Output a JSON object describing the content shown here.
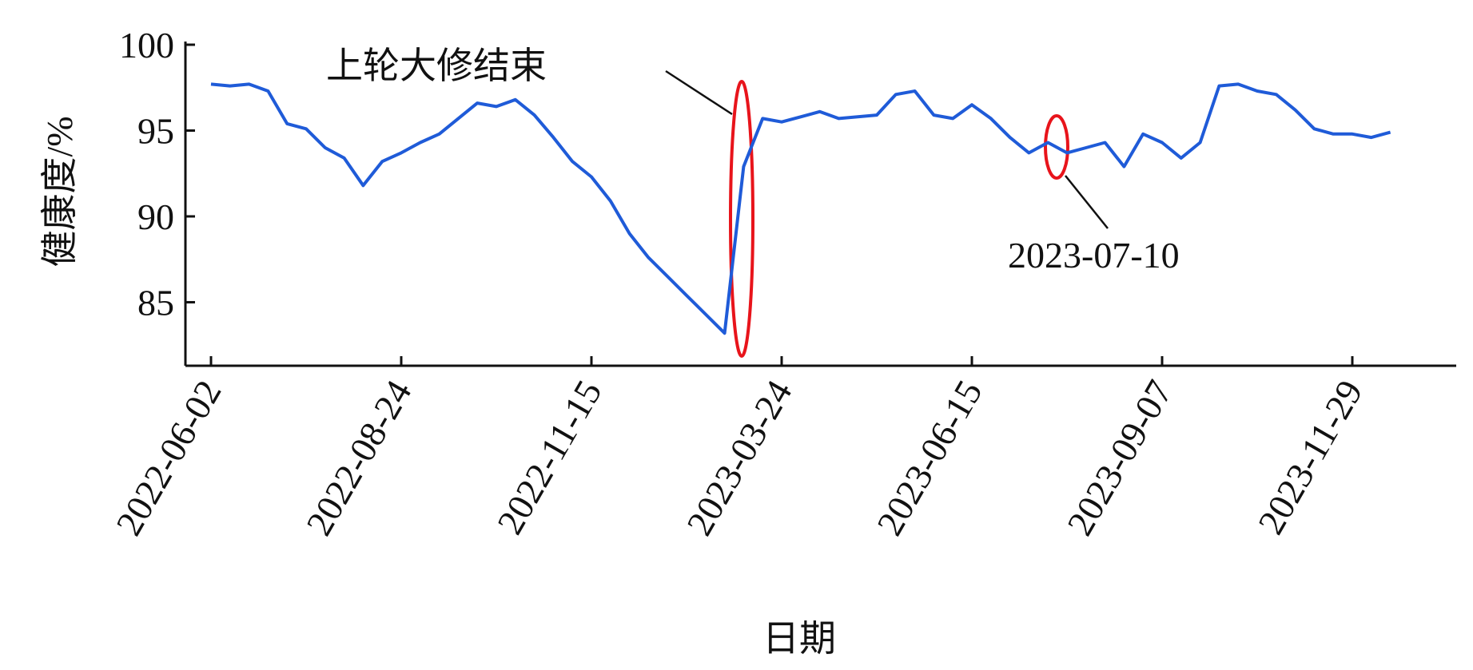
{
  "chart_data": {
    "type": "line",
    "x_label": "日期",
    "y_label": "健康度/%",
    "annotations": [
      "上轮大修结束",
      "2023-07-10"
    ],
    "categories": [
      "2022-06-02",
      null,
      null,
      null,
      null,
      null,
      null,
      null,
      null,
      null,
      "2022-08-24",
      null,
      null,
      null,
      null,
      null,
      null,
      null,
      null,
      null,
      "2022-11-15",
      null,
      null,
      null,
      null,
      null,
      null,
      null,
      null,
      null,
      "2023-03-24",
      null,
      null,
      null,
      null,
      null,
      null,
      null,
      null,
      null,
      "2023-06-15",
      null,
      null,
      null,
      null,
      null,
      null,
      null,
      null,
      null,
      "2023-09-07",
      null,
      null,
      null,
      null,
      null,
      null,
      null,
      null,
      null,
      "2023-11-29",
      null,
      null
    ],
    "values": [
      97.7,
      97.6,
      97.7,
      97.3,
      95.4,
      95.1,
      94.0,
      93.4,
      91.8,
      93.2,
      93.7,
      94.3,
      94.8,
      95.7,
      96.6,
      96.4,
      96.8,
      95.9,
      94.6,
      93.2,
      92.3,
      90.9,
      89.0,
      87.6,
      86.5,
      85.4,
      84.3,
      83.2,
      92.9,
      95.7,
      95.5,
      95.8,
      96.1,
      95.7,
      95.8,
      95.9,
      97.1,
      97.3,
      95.9,
      95.7,
      96.5,
      95.7,
      94.6,
      93.7,
      94.3,
      93.7,
      94.0,
      94.3,
      92.9,
      94.8,
      94.3,
      93.4,
      94.3,
      97.6,
      97.7,
      97.3,
      97.1,
      96.2,
      95.1,
      94.8,
      94.8,
      94.6,
      94.9
    ],
    "color": "#1f5bd8",
    "ylim": [
      81.3,
      100
    ],
    "yticks": [
      85,
      90,
      95,
      100
    ]
  }
}
